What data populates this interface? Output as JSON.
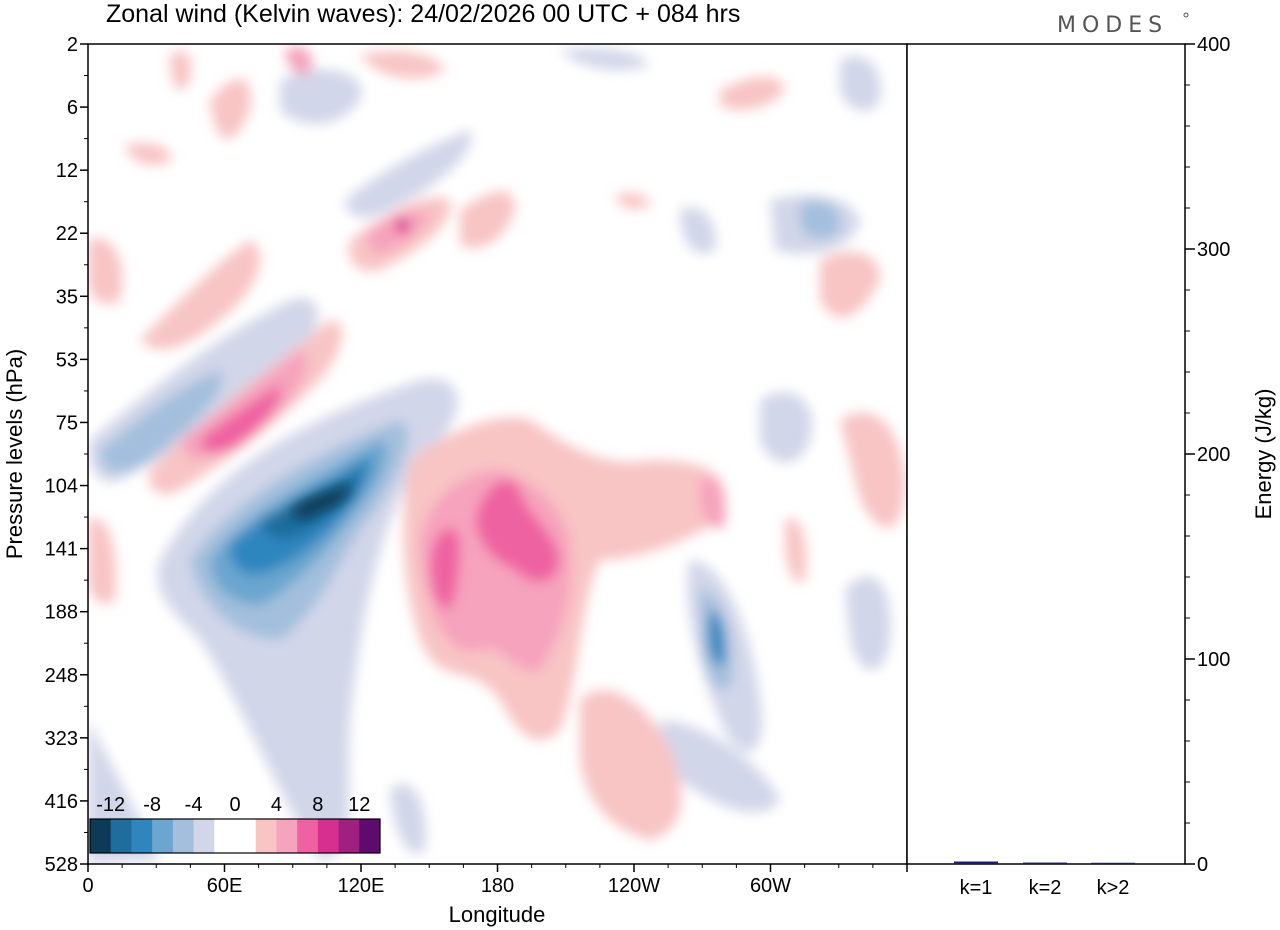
{
  "brand": "MODES",
  "chart_data": [
    {
      "type": "heatmap",
      "title": "Zonal wind (Kelvin waves):  24/02/2026  00 UTC  + 084 hrs",
      "xlabel": "Longitude",
      "ylabel": "Pressure levels (hPa)",
      "x_ticks": [
        "0",
        "60E",
        "120E",
        "180",
        "120W",
        "60W"
      ],
      "x_tick_degrees": [
        0,
        60,
        120,
        180,
        240,
        300
      ],
      "x_range_degrees": [
        0,
        360
      ],
      "y_ticks": [
        "2",
        "6",
        "12",
        "22",
        "35",
        "53",
        "75",
        "104",
        "141",
        "188",
        "248",
        "323",
        "416",
        "528"
      ],
      "colorbar": {
        "labels": [
          "-12",
          "-8",
          "-4",
          "0",
          "4",
          "8",
          "12"
        ],
        "levels": [
          -14,
          -12,
          -10,
          -8,
          -6,
          -4,
          -2,
          2,
          4,
          6,
          8,
          10,
          12,
          14
        ],
        "colors": [
          "#0d3a56",
          "#1f6d9c",
          "#2f86bf",
          "#6aa6cf",
          "#a3bfdd",
          "#d2d6e9",
          "#ffffff",
          "#ffffff",
          "#f8c4c4",
          "#f6a3bd",
          "#ef62a1",
          "#d62f8f",
          "#a0207f",
          "#5e0a6e"
        ]
      },
      "features": [
        {
          "name": "negative-core",
          "lon": 95,
          "level": "104-141",
          "value": -14
        },
        {
          "name": "negative-band",
          "lon": 30,
          "level": "75-104",
          "value": -8
        },
        {
          "name": "positive-band",
          "lon": 75,
          "level": "75",
          "value": 8
        },
        {
          "name": "positive-core",
          "lon": 165,
          "level": "141-188",
          "value": 8
        },
        {
          "name": "positive-core-2",
          "lon": 190,
          "level": "104-141",
          "value": 8
        },
        {
          "name": "negative-spot",
          "lon": 275,
          "level": "188",
          "value": -8
        },
        {
          "name": "negative-spot-upper",
          "lon": 325,
          "level": "22",
          "value": -8
        }
      ]
    },
    {
      "type": "bar",
      "categories": [
        "k=1",
        "k=2",
        "k>2"
      ],
      "values": [
        1.2,
        0.7,
        0.6
      ],
      "ylabel": "Energy (J/kg)",
      "ylim": [
        0,
        400
      ],
      "y_ticks": [
        "0",
        "100",
        "200",
        "300",
        "400"
      ],
      "y_tick_values": [
        0,
        100,
        200,
        300,
        400
      ],
      "bar_color": "#1a1a6e"
    }
  ]
}
